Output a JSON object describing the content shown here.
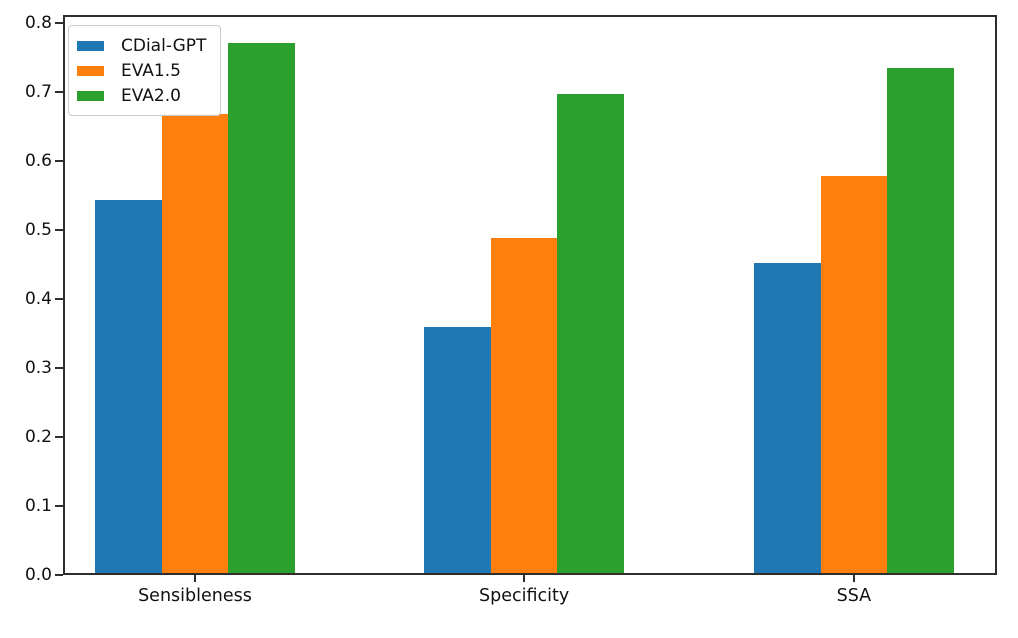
{
  "chart_data": {
    "type": "bar",
    "title": "",
    "xlabel": "",
    "ylabel": "",
    "categories": [
      "Sensibleness",
      "Specificity",
      "SSA"
    ],
    "series": [
      {
        "name": "CDial-GPT",
        "color": "#1f77b4",
        "values": [
          0.545,
          0.36,
          0.4525
        ]
      },
      {
        "name": "EVA1.5",
        "color": "#ff7f0e",
        "values": [
          0.67,
          0.49,
          0.58
        ]
      },
      {
        "name": "EVA2.0",
        "color": "#2ca02c",
        "values": [
          0.775,
          0.7,
          0.7375
        ]
      }
    ],
    "ylim": [
      0,
      0.8123
    ],
    "yticks": [
      0.0,
      0.1,
      0.2,
      0.3,
      0.4,
      0.5,
      0.6,
      0.7,
      0.8
    ],
    "ytick_format": "one_decimal",
    "grid": false,
    "legend": {
      "position": "upper-left",
      "entries": [
        "CDial-GPT",
        "EVA1.5",
        "EVA2.0"
      ]
    },
    "colors": {
      "background": "#ffffff",
      "spine": "#2e2e2e",
      "text": "#111111",
      "legend_border": "#cccccc"
    }
  }
}
